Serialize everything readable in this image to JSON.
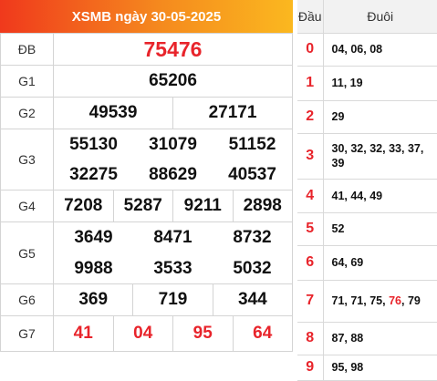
{
  "header": {
    "title": "XSMB ngày 30-05-2025"
  },
  "prizes": [
    {
      "label": "ĐB",
      "rows": [
        [
          "75476"
        ]
      ]
    },
    {
      "label": "G1",
      "rows": [
        [
          "65206"
        ]
      ]
    },
    {
      "label": "G2",
      "rows": [
        [
          "49539",
          "27171"
        ]
      ]
    },
    {
      "label": "G3",
      "rows": [
        [
          "55130",
          "31079",
          "51152"
        ],
        [
          "32275",
          "88629",
          "40537"
        ]
      ]
    },
    {
      "label": "G4",
      "rows": [
        [
          "7208",
          "5287",
          "9211",
          "2898"
        ]
      ]
    },
    {
      "label": "G5",
      "rows": [
        [
          "3649",
          "8471",
          "8732"
        ],
        [
          "9988",
          "3533",
          "5032"
        ]
      ]
    },
    {
      "label": "G6",
      "rows": [
        [
          "369",
          "719",
          "344"
        ]
      ]
    },
    {
      "label": "G7",
      "rows": [
        [
          "41",
          "04",
          "95",
          "64"
        ]
      ]
    }
  ],
  "loto": {
    "head_label": "Đầu",
    "tail_label": "Đuôi",
    "rows": [
      {
        "head": "0",
        "tails": [
          "04",
          "06",
          "08"
        ]
      },
      {
        "head": "1",
        "tails": [
          "11",
          "19"
        ]
      },
      {
        "head": "2",
        "tails": [
          "29"
        ]
      },
      {
        "head": "3",
        "tails": [
          "30",
          "32",
          "32",
          "33",
          "37",
          "39"
        ]
      },
      {
        "head": "4",
        "tails": [
          "41",
          "44",
          "49"
        ]
      },
      {
        "head": "5",
        "tails": [
          "52"
        ]
      },
      {
        "head": "6",
        "tails": [
          "64",
          "69"
        ]
      },
      {
        "head": "7",
        "tails": [
          "71",
          "71",
          "75",
          "76",
          "79"
        ],
        "highlight": [
          "76"
        ]
      },
      {
        "head": "8",
        "tails": [
          "87",
          "88"
        ]
      },
      {
        "head": "9",
        "tails": [
          "95",
          "98"
        ]
      }
    ]
  },
  "colors": {
    "accent_red": "#e8242b",
    "header_gradient_start": "#f0391c",
    "header_gradient_end": "#fbb81f"
  }
}
